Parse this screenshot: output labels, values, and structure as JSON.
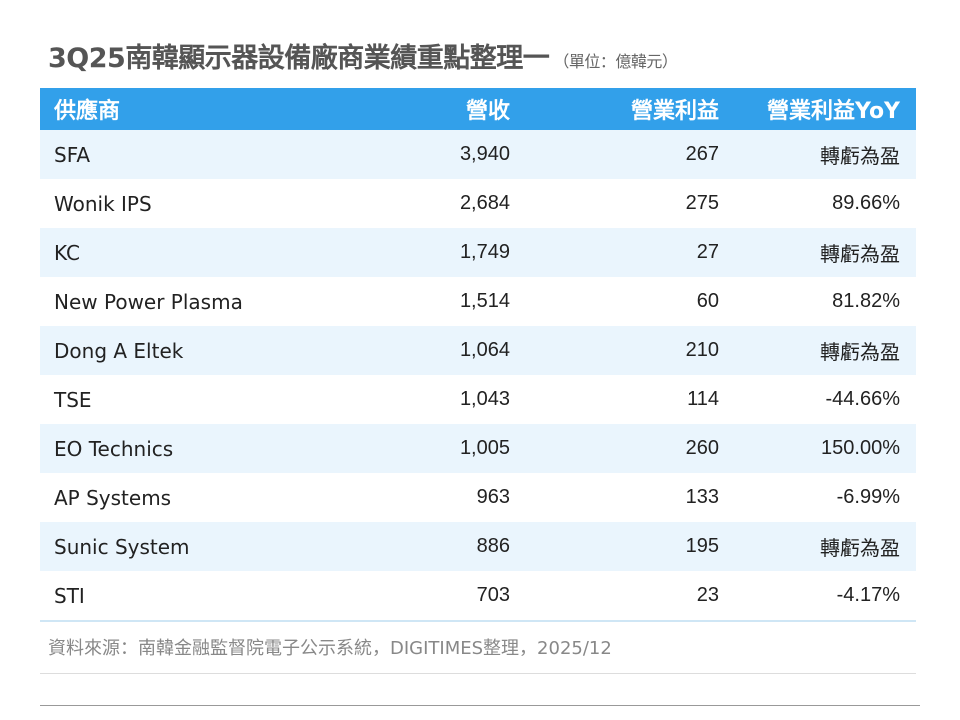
{
  "title": "3Q25南韓顯示器設備廠商業績重點整理一",
  "unit": "（單位：億韓元）",
  "header_color": "#32a0ea",
  "columns": [
    "供應商",
    "營收",
    "營業利益",
    "營業利益YoY"
  ],
  "rows": [
    [
      "SFA",
      "3,940",
      "267",
      "轉虧為盈"
    ],
    [
      "Wonik IPS",
      "2,684",
      "275",
      "89.66%"
    ],
    [
      "KC",
      "1,749",
      "27",
      "轉虧為盈"
    ],
    [
      "New Power Plasma",
      "1,514",
      "60",
      "81.82%"
    ],
    [
      "Dong A Eltek",
      "1,064",
      "210",
      "轉虧為盈"
    ],
    [
      "TSE",
      "1,043",
      "114",
      "-44.66%"
    ],
    [
      "EO Technics",
      "1,005",
      "260",
      "150.00%"
    ],
    [
      "AP Systems",
      "963",
      "133",
      "-6.99%"
    ],
    [
      "Sunic System",
      "886",
      "195",
      "轉虧為盈"
    ],
    [
      "STI",
      "703",
      "23",
      "-4.17%"
    ]
  ],
  "source": "資料來源：南韓金融監督院電子公示系統，DIGITIMES整理，2025/12"
}
